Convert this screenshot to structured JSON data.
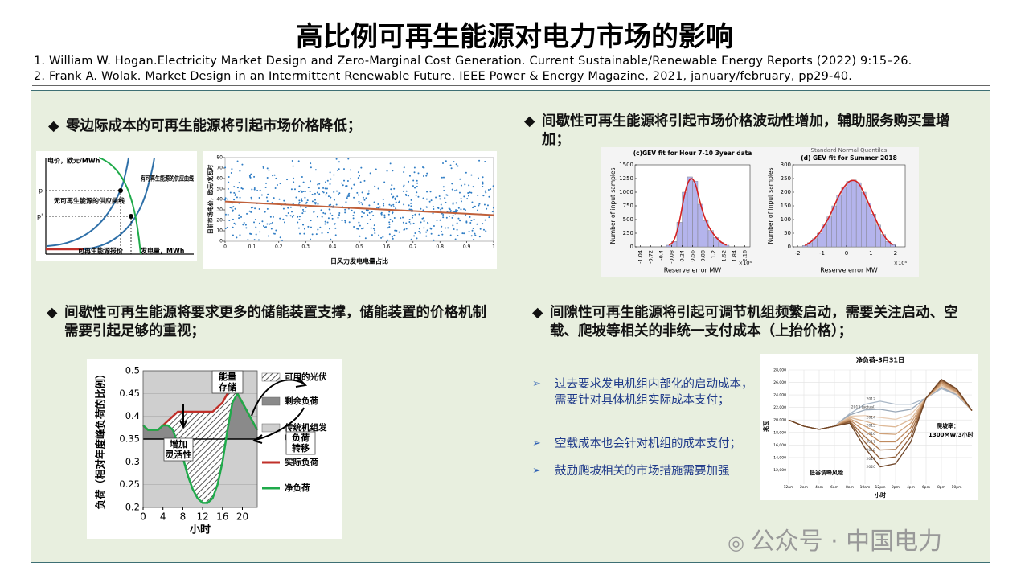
{
  "title": "高比例可再生能源对电力市场的影响",
  "references": [
    "1.  William  W. Hogan.Electricity Market Design and Zero-Marginal Cost Generation. Current Sustainable/Renewable Energy Reports (2022) 9:15–26.",
    "2.  Frank A. Wolak. Market Design in an Intermittent Renewable Future. IEEE Power & Energy Magazine, 2021, january/february, pp29-40."
  ],
  "sections": [
    {
      "heading": "零边际成本的可再生能源将引起市场价格降低；"
    },
    {
      "heading": "间歇性可再生能源将引起市场价格波动性增加，辅助服务购买量增加；"
    },
    {
      "heading": "间歇性可再生能源将要求更多的储能装置支撑，储能装置的价格机制需要引起足够的重视；"
    },
    {
      "heading": "间隙性可再生能源将引起可调节机组频繁启动，需要关注启动、空载、爬坡等相关的非统一支付成本（上抬价格）；"
    }
  ],
  "fig_supply": {
    "y_label": "电价，欧元/MWh",
    "curve_with": "有可再生能源的供应曲线",
    "curve_without": "无可再生能源的供应曲线",
    "renewable_bid": "可再生能源报价",
    "x_label": "发电量，MWh",
    "p": "p",
    "p_prime": "p'"
  },
  "fig_scatter": {
    "y_label": "日前市场电价，欧元/兆瓦时",
    "x_label": "日风力发电电量占比",
    "xlim": [
      0,
      1
    ],
    "ylim": [
      0,
      80
    ],
    "xticks": [
      0,
      0.1,
      0.2,
      0.3,
      0.4,
      0.5,
      0.6,
      0.7,
      0.8,
      0.9,
      1
    ],
    "yticks": [
      0,
      10,
      20,
      30,
      40,
      50,
      60,
      70,
      80
    ],
    "trend": [
      38,
      25
    ],
    "color": "#2e7cc4",
    "trend_color": "#c0603a"
  },
  "fig_hist": [
    {
      "title": "(c)GEV fit for Hour 7-10 3year data",
      "y_label": "Number of input samples",
      "x_label": "Reserve error MW",
      "multiplier": "×10⁴",
      "xlim": [
        -1.2,
        2.32
      ],
      "ylim": [
        0,
        1500
      ],
      "xticks": [
        -1.04,
        -0.72,
        -0.4,
        -0.08,
        0.24,
        0.56,
        0.88,
        1.2,
        1.52,
        1.84,
        2.16
      ],
      "yticks": [
        0,
        250,
        500,
        750,
        1000,
        1250,
        1500
      ],
      "bins": [
        -0.24,
        -0.08,
        0.08,
        0.24,
        0.4,
        0.56,
        0.72,
        0.88,
        1.04,
        1.2,
        1.36,
        1.52,
        1.68
      ],
      "counts": [
        30,
        100,
        450,
        1000,
        1280,
        1200,
        780,
        480,
        300,
        170,
        80,
        30
      ],
      "color": "#b4b4ec",
      "fit_color": "#d42020"
    },
    {
      "title": "(d) GEV fit for Summer 2018",
      "subtitle": "Standard Normal Quantiles",
      "y_label": "Number of input samples",
      "x_label": "Reserve error MW",
      "multiplier": "×10⁴",
      "xlim": [
        -2.2,
        2.4
      ],
      "ylim": [
        0,
        300
      ],
      "xticks": [
        -2,
        -1,
        0,
        1,
        2
      ],
      "yticks": [
        0,
        50,
        100,
        150,
        200,
        250,
        300
      ],
      "bins": [
        -1.8,
        -1.6,
        -1.4,
        -1.2,
        -1,
        -0.8,
        -0.6,
        -0.4,
        -0.2,
        0,
        0.2,
        0.4,
        0.6,
        0.8,
        1,
        1.2,
        1.4,
        1.6,
        1.8,
        2
      ],
      "counts": [
        5,
        15,
        30,
        50,
        80,
        110,
        150,
        190,
        220,
        240,
        245,
        235,
        200,
        160,
        120,
        80,
        45,
        20,
        8
      ],
      "color": "#b4b4ec",
      "fit_color": "#d42020"
    }
  ],
  "fig_storage": {
    "y_label": "负荷（相对年度峰负荷的比例）",
    "x_label": "小时",
    "xlim": [
      0,
      23
    ],
    "ylim": [
      0.2,
      0.5
    ],
    "xticks": [
      0,
      4,
      8,
      12,
      16,
      20
    ],
    "yticks": [
      0.2,
      0.25,
      0.3,
      0.35,
      0.4,
      0.45,
      0.5
    ],
    "baseload": 0.35,
    "hours": [
      0,
      1,
      2,
      3,
      4,
      5,
      6,
      7,
      8,
      9,
      10,
      11,
      12,
      13,
      14,
      15,
      16,
      17,
      18,
      19,
      20,
      21,
      22,
      23
    ],
    "actual": [
      0.38,
      0.37,
      0.37,
      0.37,
      0.38,
      0.39,
      0.4,
      0.41,
      0.41,
      0.41,
      0.41,
      0.41,
      0.41,
      0.41,
      0.41,
      0.42,
      0.43,
      0.45,
      0.46,
      0.45,
      0.43,
      0.41,
      0.39,
      0.37
    ],
    "net": [
      0.38,
      0.37,
      0.37,
      0.37,
      0.38,
      0.38,
      0.37,
      0.34,
      0.31,
      0.27,
      0.24,
      0.22,
      0.21,
      0.21,
      0.22,
      0.25,
      0.3,
      0.37,
      0.43,
      0.45,
      0.43,
      0.41,
      0.39,
      0.37
    ],
    "legend": [
      "可用的光伏",
      "剩余负荷",
      "传统机组发电",
      "实际负荷",
      "净负荷"
    ],
    "actual_color": "#c0302a",
    "net_color": "#1faa4a",
    "annotations": [
      "能量存储",
      "增加灵活性",
      "负荷转移"
    ]
  },
  "fig_duck": {
    "title": "净负荷-3月31日",
    "y_label": "兆瓦",
    "x_label": "小时",
    "xlim": [
      0,
      24
    ],
    "ylim": [
      10000,
      28000
    ],
    "xticks": [
      {
        "value": 0,
        "label": "12am"
      },
      {
        "value": 2,
        "label": "2am"
      },
      {
        "value": 4,
        "label": "4am"
      },
      {
        "value": 6,
        "label": "6am"
      },
      {
        "value": 8,
        "label": "8am"
      },
      {
        "value": 10,
        "label": "10am"
      },
      {
        "value": 12,
        "label": "12pm"
      },
      {
        "value": 14,
        "label": "2pm"
      },
      {
        "value": 16,
        "label": "4pm"
      },
      {
        "value": 18,
        "label": "6pm"
      },
      {
        "value": 20,
        "label": "8pm"
      },
      {
        "value": 22,
        "label": "10pm"
      }
    ],
    "yticks": [
      {
        "value": 12000,
        "label": "12,000"
      },
      {
        "value": 14000,
        "label": "14,000"
      },
      {
        "value": 16000,
        "label": "16,000"
      },
      {
        "value": 18000,
        "label": "18,000"
      },
      {
        "value": 20000,
        "label": "20,000"
      },
      {
        "value": 22000,
        "label": "22,000"
      },
      {
        "value": 24000,
        "label": "24,000"
      },
      {
        "value": 26000,
        "label": "26,000"
      },
      {
        "value": 28000,
        "label": "28,000"
      }
    ],
    "x": [
      0,
      2,
      4,
      6,
      8,
      10,
      12,
      14,
      16,
      18,
      20,
      22,
      24
    ],
    "series": [
      {
        "name": "2012",
        "color": "#a9b7c6",
        "values": [
          20000,
          19000,
          18500,
          19000,
          21000,
          22500,
          23000,
          22500,
          22500,
          23500,
          25000,
          24000,
          21500
        ]
      },
      {
        "name": "2013 (actual)",
        "color": "#9aa8b8",
        "values": [
          20000,
          19000,
          18500,
          19000,
          20800,
          21600,
          21700,
          21300,
          21700,
          23500,
          25200,
          24100,
          21500
        ]
      },
      {
        "name": "2014",
        "color": "#e8cdb5",
        "values": [
          20000,
          19000,
          18500,
          19000,
          20600,
          20700,
          20400,
          20100,
          20900,
          23500,
          25400,
          24200,
          21500
        ]
      },
      {
        "name": "2015",
        "color": "#ddb896",
        "values": [
          20000,
          19000,
          18500,
          19000,
          20400,
          19800,
          19100,
          18900,
          20100,
          23500,
          25600,
          24400,
          21500
        ]
      },
      {
        "name": "2016",
        "color": "#cfa178",
        "values": [
          20000,
          19000,
          18500,
          19000,
          20200,
          19000,
          17800,
          17700,
          19500,
          23500,
          25800,
          24500,
          21500
        ]
      },
      {
        "name": "2017",
        "color": "#bf8a5e",
        "values": [
          20000,
          19000,
          18500,
          19000,
          20000,
          18200,
          16500,
          16500,
          18800,
          23500,
          26000,
          24600,
          21500
        ]
      },
      {
        "name": "2018",
        "color": "#a87348",
        "values": [
          20000,
          19000,
          18500,
          19000,
          19800,
          17300,
          15200,
          15300,
          18100,
          23500,
          26200,
          24800,
          21500
        ]
      },
      {
        "name": "2019",
        "color": "#8e5c36",
        "values": [
          20000,
          19000,
          18500,
          19000,
          19700,
          16400,
          13800,
          14100,
          17300,
          23500,
          26400,
          24900,
          21500
        ]
      },
      {
        "name": "2020",
        "color": "#6e4426",
        "values": [
          20000,
          19000,
          18500,
          19000,
          19500,
          15500,
          12500,
          13000,
          16500,
          23500,
          26500,
          25000,
          21500
        ]
      }
    ],
    "annotations": [
      "爬坡率：",
      "1300MW/3小时",
      "低谷调峰风险"
    ]
  },
  "bullets": [
    "过去要求发电机组内部化的启动成本，需要针对具体机组实际成本支付；",
    "空载成本也会针对机组的成本支付；",
    "鼓励爬坡相关的市场措施需要加强"
  ],
  "watermark": "公众号 · 中国电力"
}
